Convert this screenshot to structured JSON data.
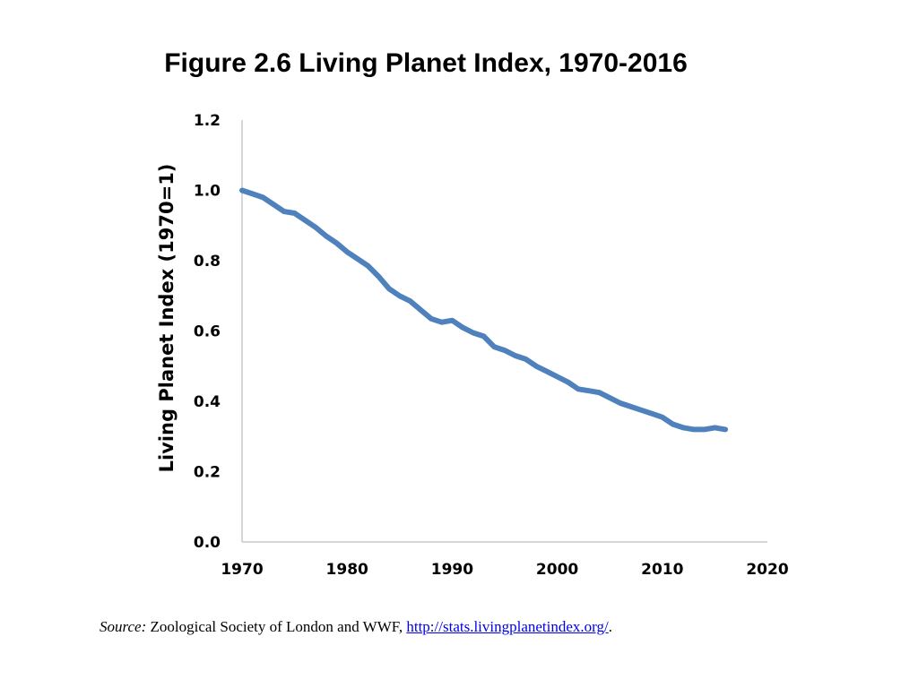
{
  "chart_data": {
    "type": "line",
    "title": "Figure 2.6 Living Planet Index, 1970-2016",
    "ylabel": "Living Planet Index (1970=1)",
    "xlabel": "",
    "xlim": [
      1970,
      2020
    ],
    "ylim": [
      0,
      1.2
    ],
    "x_ticks": [
      "1970",
      "1980",
      "1990",
      "2000",
      "2010",
      "2020"
    ],
    "y_ticks": [
      "0.0",
      "0.2",
      "0.4",
      "0.6",
      "0.8",
      "1.0",
      "1.2"
    ],
    "grid": false,
    "legend": "none",
    "line_color": "#4f81bd",
    "series": [
      {
        "x": [
          1970,
          1971,
          1972,
          1973,
          1974,
          1975,
          1976,
          1977,
          1978,
          1979,
          1980,
          1981,
          1982,
          1983,
          1984,
          1985,
          1986,
          1987,
          1988,
          1989,
          1990,
          1991,
          1992,
          1993,
          1994,
          1995,
          1996,
          1997,
          1998,
          1999,
          2000,
          2001,
          2002,
          2003,
          2004,
          2005,
          2006,
          2007,
          2008,
          2009,
          2010,
          2011,
          2012,
          2013,
          2014,
          2015,
          2016
        ],
        "y": [
          1.0,
          0.99,
          0.98,
          0.96,
          0.94,
          0.935,
          0.915,
          0.895,
          0.87,
          0.85,
          0.825,
          0.805,
          0.785,
          0.755,
          0.72,
          0.7,
          0.685,
          0.66,
          0.635,
          0.625,
          0.63,
          0.61,
          0.595,
          0.585,
          0.555,
          0.545,
          0.53,
          0.52,
          0.5,
          0.485,
          0.47,
          0.455,
          0.435,
          0.43,
          0.425,
          0.41,
          0.395,
          0.385,
          0.375,
          0.365,
          0.355,
          0.335,
          0.325,
          0.32,
          0.32,
          0.325,
          0.32
        ]
      }
    ]
  },
  "source": {
    "label": "Source:",
    "text": " Zoological Society of London and WWF, ",
    "link_text": "http://stats.livingplanetindex.org/",
    "end": "."
  }
}
